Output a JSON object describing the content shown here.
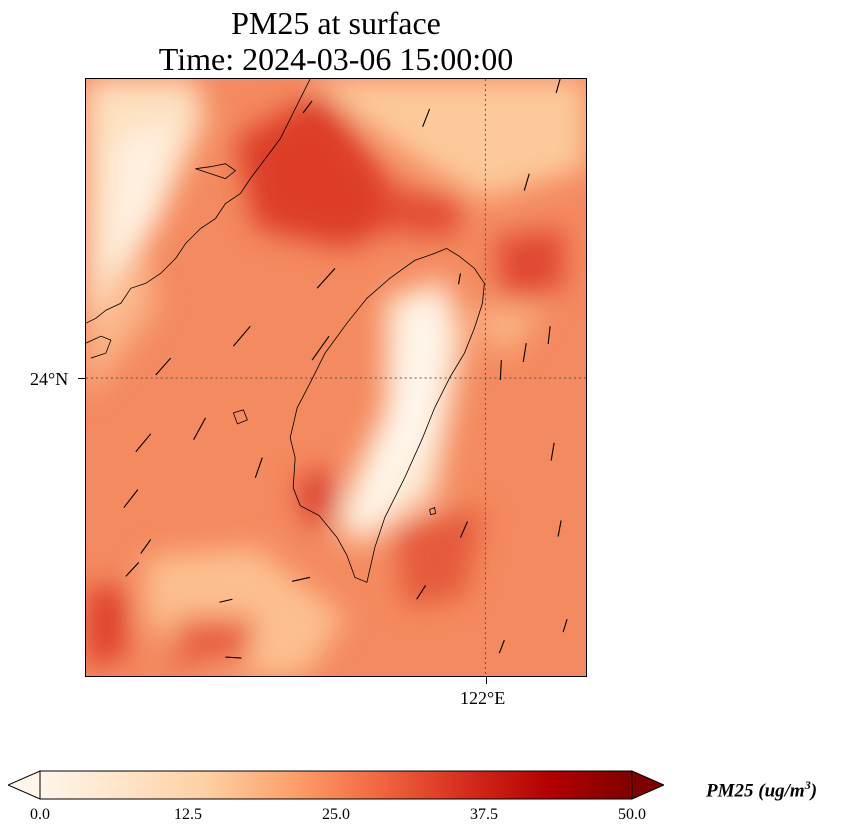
{
  "title": {
    "line1": "PM25 at surface",
    "line2": "Time: 2024-03-06 15:00:00"
  },
  "axes": {
    "lat_label": "24°N",
    "lon_label": "122°E"
  },
  "colorbar": {
    "ticks": [
      "0.0",
      "12.5",
      "25.0",
      "37.5",
      "50.0"
    ],
    "unit_prefix": "PM25 (ug/m",
    "unit_exp": "3",
    "unit_suffix": ")",
    "range": [
      0,
      50
    ],
    "colormap": [
      "#fff5eb",
      "#fee4c8",
      "#fdd0a2",
      "#fc9f6b",
      "#f26841",
      "#d7301f",
      "#b30000",
      "#7f0000"
    ]
  }
}
